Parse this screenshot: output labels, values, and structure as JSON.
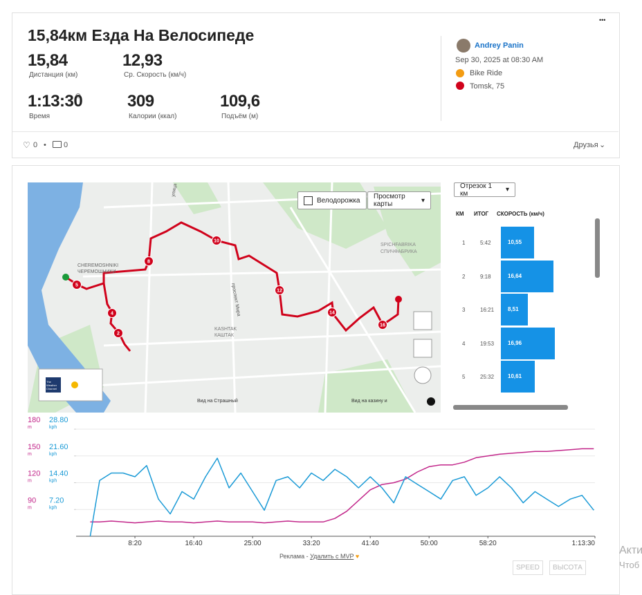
{
  "header": {
    "title": "15,84км Езда На Велосипеде",
    "menu": "•••"
  },
  "stats": [
    {
      "value": "15,84",
      "label": "Дистанция (км)"
    },
    {
      "value": "12,93",
      "label": "Ср. Скорость (км/ч)"
    },
    {
      "value": "1:13:30",
      "label": "Время"
    },
    {
      "value": "309",
      "label": "Калории (ккал)"
    },
    {
      "value": "109,6",
      "label": "Подъём (м)"
    }
  ],
  "athlete": {
    "name": "Andrey Panin",
    "date": "Sep 30, 2025 at 08:30 AM",
    "activity": "Bike Ride",
    "location": "Tomsk, 75"
  },
  "social": {
    "likes": "0",
    "comments": "0",
    "visibility": "Друзья"
  },
  "map": {
    "bike_lane": "Велодорожка",
    "view": "Просмотр карты",
    "weather": "The Weather Channel",
    "labels": [
      "CHEREMOSHNIKI",
      "ЧЕРЕМОШНИКИ",
      "проспект Мира",
      "KASHTAK",
      "КАШТАК",
      "SPICHFABRIKA",
      "СПИЧФАБРИКА",
      "Вид на Страшный",
      "Вид на казину и",
      "улица"
    ],
    "markers": [
      "2",
      "4",
      "5",
      "8",
      "10",
      "12",
      "14",
      "16"
    ]
  },
  "splits": {
    "selector": "Отрезок 1 км",
    "headers": [
      "КМ",
      "ИТОГ",
      "СКОРОСТЬ (км/ч)"
    ],
    "km": [
      "1",
      "2",
      "3",
      "4",
      "5"
    ],
    "times": [
      "5:42",
      "9:18",
      "16:21",
      "19:53",
      "25:32"
    ],
    "values": [
      10.55,
      16.64,
      8.51,
      16.96,
      10.61
    ],
    "value_labels": [
      "10,55",
      "16,64",
      "8,51",
      "16,96",
      "10,61"
    ],
    "color": "#1592e6",
    "xlim": [
      0,
      17
    ]
  },
  "chart_data": {
    "type": "line",
    "x": [
      120,
      200,
      300,
      400,
      500,
      600,
      700,
      800,
      900,
      1000,
      1100,
      1200,
      1300,
      1400,
      1500,
      1600,
      1700,
      1800,
      1900,
      2000,
      2100,
      2200,
      2300,
      2400,
      2500,
      2600,
      2700,
      2800,
      2900,
      3000,
      3100,
      3200,
      3300,
      3400,
      3500,
      3600,
      3700,
      3800,
      3900,
      4000,
      4100,
      4200,
      4300,
      4400
    ],
    "xlim": [
      0,
      4410
    ],
    "xticks": [
      {
        "value": 500,
        "label": "8:20"
      },
      {
        "value": 1000,
        "label": "16:40"
      },
      {
        "value": 1500,
        "label": "25:00"
      },
      {
        "value": 2000,
        "label": "33:20"
      },
      {
        "value": 2500,
        "label": "41:40"
      },
      {
        "value": 3000,
        "label": "50:00"
      },
      {
        "value": 3500,
        "label": "58:20"
      },
      {
        "value": 4410,
        "label": "1:13:30"
      }
    ],
    "ylim": [
      60,
      180
    ],
    "yticks": [
      90,
      120,
      150,
      180
    ],
    "y_unit": "m",
    "y2lim": [
      0,
      28.8
    ],
    "y2ticks": [
      {
        "value": 7.2,
        "label": "7.20"
      },
      {
        "value": 14.4,
        "label": "14.40"
      },
      {
        "value": 21.6,
        "label": "21.60"
      },
      {
        "value": 28.8,
        "label": "28.80"
      }
    ],
    "y2_unit": "kph",
    "grid": true,
    "series": [
      {
        "name": "ВЫСОТА",
        "color": "#c2268a",
        "values": [
          76,
          76,
          77,
          76,
          75,
          76,
          77,
          76,
          76,
          75,
          76,
          77,
          76,
          76,
          76,
          75,
          76,
          77,
          76,
          76,
          76,
          80,
          88,
          100,
          112,
          118,
          120,
          124,
          132,
          138,
          140,
          140,
          143,
          148,
          150,
          152,
          153,
          154,
          155,
          155,
          156,
          157,
          158,
          158
        ]
      },
      {
        "name": "SPEED",
        "color": "#1a9ad6",
        "axis": "y2",
        "values": [
          0,
          15,
          17,
          17,
          16,
          19,
          10,
          6,
          12,
          10,
          16,
          21,
          13,
          17,
          12,
          7,
          15,
          16,
          13,
          17,
          15,
          18,
          16,
          13,
          16,
          13,
          9,
          16,
          14,
          12,
          10,
          15,
          16,
          11,
          13,
          16,
          13,
          9,
          12,
          10,
          8,
          10,
          11,
          7
        ]
      }
    ]
  },
  "footer": {
    "ad": "Реклама - ",
    "remove": "Удалить с MVP",
    "side1": "Акти",
    "side2": "Чтоб"
  }
}
